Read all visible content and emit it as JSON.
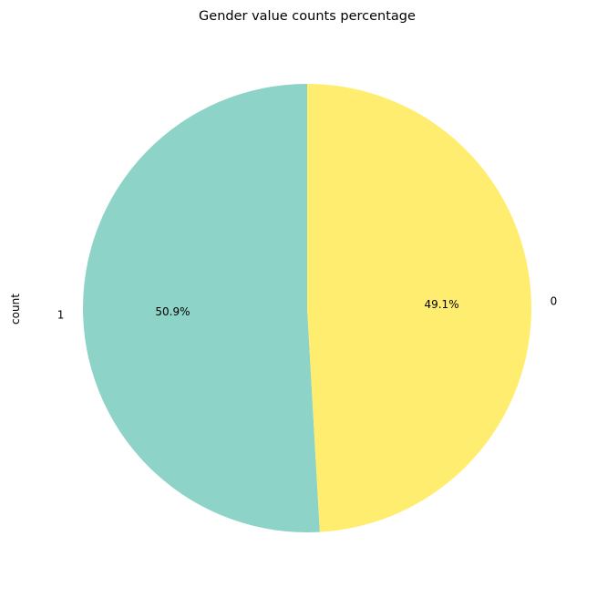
{
  "chart_data": {
    "type": "pie",
    "title": "Gender value counts percentage",
    "ylabel": "count",
    "categories": [
      "1",
      "0"
    ],
    "values": [
      50.9,
      49.1
    ],
    "percent_labels": [
      "50.9%",
      "49.1%"
    ],
    "colors": [
      "#8dd3c7",
      "#ffed6f"
    ],
    "start_angle_deg": 90,
    "direction": "counterclockwise",
    "legend": "none"
  }
}
